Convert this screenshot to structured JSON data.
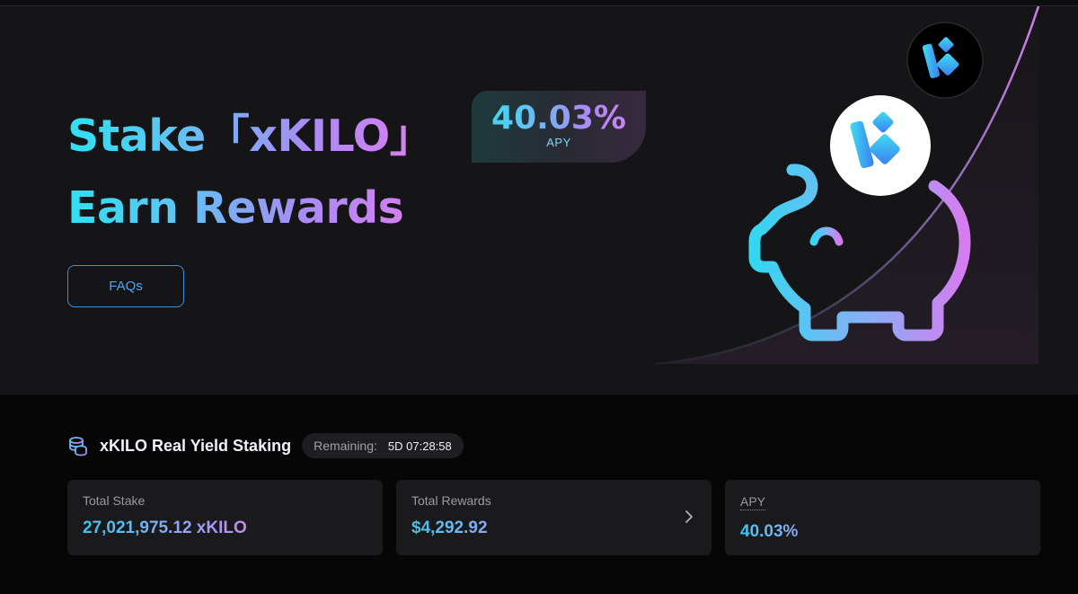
{
  "hero": {
    "title_line1": "Stake「xKILO」",
    "title_line2": "Earn Rewards",
    "apy_value": "40.03%",
    "apy_label": "APY",
    "faq_label": "FAQs"
  },
  "staking": {
    "title": "xKILO Real Yield Staking",
    "remaining_label": "Remaining:",
    "remaining_value": "5D 07:28:58"
  },
  "cards": [
    {
      "label": "Total Stake",
      "value": "27,021,975.12 xKILO"
    },
    {
      "label": "Total Rewards",
      "value": "$4,292.92"
    },
    {
      "label": "APY",
      "value": "40.03%"
    }
  ],
  "icons": {
    "piggy": "piggy-bank-icon",
    "coin": "kilo-coin-logo",
    "coin_small": "kilo-logo",
    "coins": "coin-stack-icon",
    "chevron": "chevron-right-icon"
  },
  "colors": {
    "accent_cyan": "#2fe0ef",
    "accent_purple": "#e07cf0",
    "button_blue": "#3a8fe0"
  }
}
